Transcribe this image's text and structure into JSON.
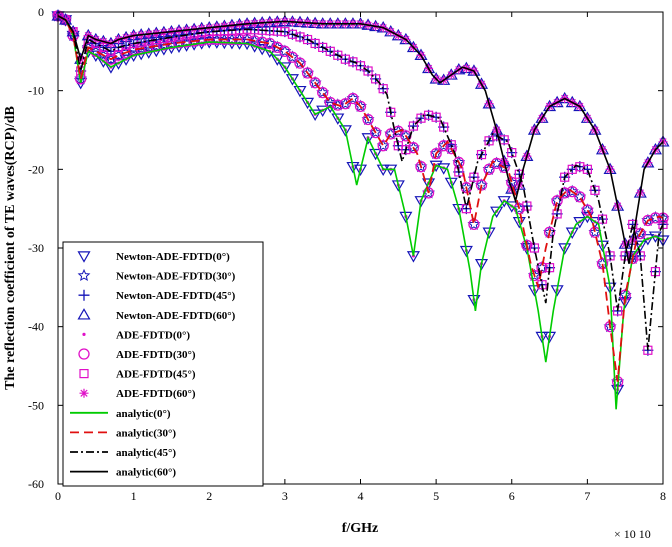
{
  "chart_data": {
    "type": "line",
    "title": "",
    "xlabel": "f/GHz",
    "ylabel": "The reflection coefficient of TE waves(RCP)/dB",
    "x_exponent_label": "× 10 10",
    "xlim": [
      0,
      8
    ],
    "ylim": [
      -60,
      0
    ],
    "xticks": [
      "0",
      "1",
      "2",
      "3",
      "4",
      "5",
      "6",
      "7",
      "8"
    ],
    "yticks": [
      "0",
      "-10",
      "-20",
      "-30",
      "-40",
      "-50",
      "-60"
    ],
    "legend_position": "lower-left",
    "angles": [
      {
        "angle": 0,
        "color": "#00cc00",
        "points": [
          [
            0,
            -0.5
          ],
          [
            0.1,
            -1.0
          ],
          [
            0.2,
            -3.0
          ],
          [
            0.3,
            -9.0
          ],
          [
            0.4,
            -5.0
          ],
          [
            0.5,
            -5.5
          ],
          [
            0.7,
            -7.0
          ],
          [
            0.8,
            -6.5
          ],
          [
            1.0,
            -5.5
          ],
          [
            1.5,
            -4.5
          ],
          [
            2.0,
            -3.8
          ],
          [
            2.5,
            -4.0
          ],
          [
            2.8,
            -5.0
          ],
          [
            3.0,
            -7.0
          ],
          [
            3.2,
            -10.0
          ],
          [
            3.4,
            -13.0
          ],
          [
            3.6,
            -12.0
          ],
          [
            3.8,
            -15.0
          ],
          [
            3.95,
            -22.0
          ],
          [
            4.1,
            -16.0
          ],
          [
            4.3,
            -20.0
          ],
          [
            4.45,
            -20.0
          ],
          [
            4.6,
            -26.0
          ],
          [
            4.7,
            -31.0
          ],
          [
            4.8,
            -24.0
          ],
          [
            5.0,
            -19.5
          ],
          [
            5.15,
            -20.0
          ],
          [
            5.3,
            -25.0
          ],
          [
            5.45,
            -33.0
          ],
          [
            5.52,
            -38.0
          ],
          [
            5.6,
            -32.0
          ],
          [
            5.75,
            -26.0
          ],
          [
            5.9,
            -24.0
          ],
          [
            6.05,
            -25.0
          ],
          [
            6.2,
            -30.0
          ],
          [
            6.35,
            -38.0
          ],
          [
            6.45,
            -44.5
          ],
          [
            6.55,
            -38.0
          ],
          [
            6.7,
            -30.0
          ],
          [
            6.85,
            -27.0
          ],
          [
            7.0,
            -26.0
          ],
          [
            7.15,
            -27.0
          ],
          [
            7.3,
            -35.0
          ],
          [
            7.38,
            -50.5
          ],
          [
            7.48,
            -38.0
          ],
          [
            7.6,
            -31.0
          ],
          [
            7.75,
            -29.0
          ],
          [
            7.9,
            -28.5
          ],
          [
            8.0,
            -29.0
          ]
        ]
      },
      {
        "angle": 30,
        "color": "#e01010",
        "points": [
          [
            0,
            -0.5
          ],
          [
            0.1,
            -1.0
          ],
          [
            0.2,
            -3.0
          ],
          [
            0.3,
            -8.5
          ],
          [
            0.4,
            -4.5
          ],
          [
            0.5,
            -5.0
          ],
          [
            0.7,
            -6.0
          ],
          [
            0.8,
            -5.5
          ],
          [
            1.0,
            -4.8
          ],
          [
            1.5,
            -4.0
          ],
          [
            2.0,
            -3.5
          ],
          [
            2.5,
            -3.5
          ],
          [
            2.8,
            -4.0
          ],
          [
            3.0,
            -5.0
          ],
          [
            3.2,
            -6.5
          ],
          [
            3.4,
            -9.0
          ],
          [
            3.6,
            -11.5
          ],
          [
            3.75,
            -12.0
          ],
          [
            3.9,
            -11.0
          ],
          [
            4.0,
            -12.0
          ],
          [
            4.15,
            -14.5
          ],
          [
            4.3,
            -17.0
          ],
          [
            4.4,
            -15.5
          ],
          [
            4.55,
            -15.0
          ],
          [
            4.75,
            -18.0
          ],
          [
            4.9,
            -23.0
          ],
          [
            5.0,
            -18.0
          ],
          [
            5.15,
            -16.5
          ],
          [
            5.35,
            -20.0
          ],
          [
            5.5,
            -27.0
          ],
          [
            5.6,
            -22.0
          ],
          [
            5.75,
            -19.0
          ],
          [
            5.95,
            -20.0
          ],
          [
            6.1,
            -25.0
          ],
          [
            6.25,
            -32.0
          ],
          [
            6.35,
            -35.0
          ],
          [
            6.45,
            -30.0
          ],
          [
            6.6,
            -24.0
          ],
          [
            6.75,
            -22.5
          ],
          [
            6.9,
            -23.5
          ],
          [
            7.05,
            -26.0
          ],
          [
            7.2,
            -32.0
          ],
          [
            7.3,
            -40.0
          ],
          [
            7.4,
            -47.0
          ],
          [
            7.5,
            -36.0
          ],
          [
            7.65,
            -29.0
          ],
          [
            7.8,
            -26.5
          ],
          [
            7.95,
            -26.0
          ],
          [
            8.0,
            -26.2
          ]
        ]
      },
      {
        "angle": 45,
        "color": "#000000",
        "points": [
          [
            0,
            -0.5
          ],
          [
            0.1,
            -1.0
          ],
          [
            0.2,
            -2.5
          ],
          [
            0.3,
            -7.5
          ],
          [
            0.4,
            -3.5
          ],
          [
            0.5,
            -4.0
          ],
          [
            0.7,
            -5.0
          ],
          [
            0.8,
            -4.5
          ],
          [
            1.0,
            -4.0
          ],
          [
            1.5,
            -3.2
          ],
          [
            2.0,
            -2.5
          ],
          [
            2.5,
            -2.2
          ],
          [
            3.0,
            -2.5
          ],
          [
            3.3,
            -3.5
          ],
          [
            3.6,
            -5.0
          ],
          [
            3.8,
            -6.0
          ],
          [
            3.95,
            -6.5
          ],
          [
            4.1,
            -7.5
          ],
          [
            4.25,
            -9.0
          ],
          [
            4.35,
            -10.5
          ],
          [
            4.45,
            -15.0
          ],
          [
            4.55,
            -19.0
          ],
          [
            4.7,
            -14.5
          ],
          [
            4.85,
            -13.0
          ],
          [
            5.05,
            -13.5
          ],
          [
            5.25,
            -18.0
          ],
          [
            5.4,
            -25.0
          ],
          [
            5.55,
            -19.0
          ],
          [
            5.75,
            -15.5
          ],
          [
            5.95,
            -16.5
          ],
          [
            6.15,
            -22.0
          ],
          [
            6.3,
            -30.0
          ],
          [
            6.45,
            -37.0
          ],
          [
            6.55,
            -28.0
          ],
          [
            6.7,
            -21.0
          ],
          [
            6.85,
            -19.5
          ],
          [
            7.0,
            -20.0
          ],
          [
            7.15,
            -24.0
          ],
          [
            7.3,
            -31.0
          ],
          [
            7.4,
            -38.0
          ],
          [
            7.5,
            -31.0
          ],
          [
            7.6,
            -27.0
          ],
          [
            7.7,
            -31.0
          ],
          [
            7.8,
            -43.0
          ],
          [
            7.88,
            -35.0
          ],
          [
            7.95,
            -28.0
          ],
          [
            8.0,
            -27.0
          ]
        ]
      },
      {
        "angle": 60,
        "color": "#000000",
        "points": [
          [
            0,
            -0.5
          ],
          [
            0.1,
            -1.0
          ],
          [
            0.2,
            -2.5
          ],
          [
            0.3,
            -6.0
          ],
          [
            0.4,
            -3.0
          ],
          [
            0.5,
            -3.5
          ],
          [
            0.7,
            -4.0
          ],
          [
            0.8,
            -3.5
          ],
          [
            1.0,
            -3.0
          ],
          [
            1.5,
            -2.5
          ],
          [
            2.0,
            -2.0
          ],
          [
            2.5,
            -1.5
          ],
          [
            3.0,
            -1.2
          ],
          [
            3.5,
            -1.5
          ],
          [
            4.0,
            -1.5
          ],
          [
            4.3,
            -2.0
          ],
          [
            4.6,
            -3.5
          ],
          [
            4.8,
            -5.5
          ],
          [
            4.95,
            -8.0
          ],
          [
            5.05,
            -9.0
          ],
          [
            5.2,
            -8.0
          ],
          [
            5.35,
            -7.0
          ],
          [
            5.5,
            -7.5
          ],
          [
            5.65,
            -10.0
          ],
          [
            5.8,
            -15.0
          ],
          [
            5.95,
            -21.0
          ],
          [
            6.05,
            -24.0
          ],
          [
            6.15,
            -20.0
          ],
          [
            6.3,
            -15.0
          ],
          [
            6.5,
            -12.0
          ],
          [
            6.7,
            -11.0
          ],
          [
            6.9,
            -12.0
          ],
          [
            7.1,
            -15.0
          ],
          [
            7.3,
            -20.0
          ],
          [
            7.45,
            -27.0
          ],
          [
            7.55,
            -32.0
          ],
          [
            7.65,
            -26.0
          ],
          [
            7.75,
            -20.0
          ],
          [
            7.9,
            -17.5
          ],
          [
            8.0,
            -16.5
          ]
        ]
      }
    ],
    "legend": [
      {
        "label": "Newton-ADE-FDTD(0°)",
        "marker": "triangle-down",
        "color": "#1515b8"
      },
      {
        "label": "Newton-ADE-FDTD(30°)",
        "marker": "star",
        "color": "#1515b8"
      },
      {
        "label": "Newton-ADE-FDTD(45°)",
        "marker": "plus",
        "color": "#1515b8"
      },
      {
        "label": "Newton-ADE-FDTD(60°)",
        "marker": "triangle-up",
        "color": "#1515b8"
      },
      {
        "label": "ADE-FDTD(0°)",
        "marker": "dot",
        "color": "#e010c8"
      },
      {
        "label": "ADE-FDTD(30°)",
        "marker": "circle",
        "color": "#e010c8"
      },
      {
        "label": "ADE-FDTD(45°)",
        "marker": "square",
        "color": "#e010c8"
      },
      {
        "label": "ADE-FDTD(60°)",
        "marker": "asterisk",
        "color": "#e010c8"
      },
      {
        "label": "analytic(0°)",
        "line": "solid",
        "color": "#00cc00"
      },
      {
        "label": "analytic(30°)",
        "line": "dashed",
        "color": "#e01010"
      },
      {
        "label": "analytic(45°)",
        "line": "dashdot",
        "color": "#000000"
      },
      {
        "label": "analytic(60°)",
        "line": "solid",
        "color": "#000000"
      }
    ]
  }
}
